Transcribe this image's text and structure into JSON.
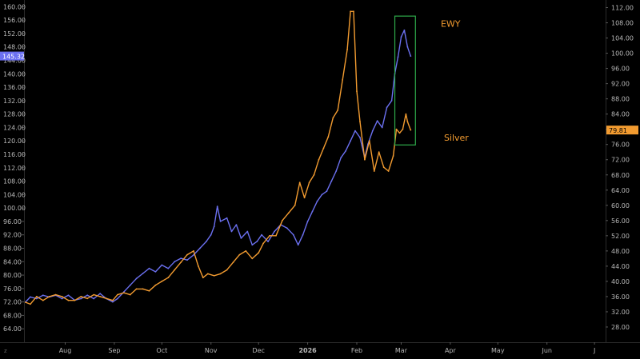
{
  "chart_data": {
    "type": "line",
    "x_axis": {
      "type": "date",
      "range": [
        "2025-07-06",
        "2026-07-08"
      ],
      "ticks": [
        {
          "date": "2025-08-01",
          "label": "Aug"
        },
        {
          "date": "2025-09-01",
          "label": "Sep"
        },
        {
          "date": "2025-10-01",
          "label": "Oct"
        },
        {
          "date": "2025-11-01",
          "label": "Nov"
        },
        {
          "date": "2025-12-01",
          "label": "Dec"
        },
        {
          "date": "2026-01-01",
          "label": "2026",
          "bold": true
        },
        {
          "date": "2026-02-01",
          "label": "Feb"
        },
        {
          "date": "2026-03-01",
          "label": "Mar"
        },
        {
          "date": "2026-04-01",
          "label": "Apr"
        },
        {
          "date": "2026-05-01",
          "label": "May"
        },
        {
          "date": "2026-06-01",
          "label": "Jun"
        },
        {
          "date": "2026-07-01",
          "label": "J"
        }
      ]
    },
    "left_axis": {
      "range": [
        60,
        162
      ],
      "ticks": [
        64,
        68,
        72,
        76,
        80,
        84,
        88,
        92,
        96,
        100,
        104,
        108,
        112,
        116,
        120,
        124,
        128,
        132,
        136,
        140,
        144,
        148,
        152,
        156,
        160
      ],
      "labels": [
        "64.00",
        "68.00",
        "72.00",
        "76.00",
        "80.00",
        "84.00",
        "88.00",
        "92.00",
        "96.00",
        "100.00",
        "104.00",
        "108.00",
        "112.00",
        "116.00",
        "120.00",
        "124.00",
        "128.00",
        "132.00",
        "136.00",
        "140.00",
        "144.00",
        "148.00",
        "152.00",
        "156.00",
        "160.00"
      ]
    },
    "right_axis": {
      "range": [
        24,
        114
      ],
      "ticks": [
        28,
        32,
        36,
        40,
        44,
        48,
        52,
        56,
        60,
        64,
        68,
        72,
        76,
        80,
        84,
        88,
        92,
        96,
        100,
        104,
        108,
        112
      ],
      "labels": [
        "28.00",
        "32.00",
        "36.00",
        "40.00",
        "44.00",
        "48.00",
        "52.00",
        "56.00",
        "60.00",
        "64.00",
        "68.00",
        "72.00",
        "76.00",
        "80.00",
        "84.00",
        "88.00",
        "92.00",
        "96.00",
        "100.00",
        "104.00",
        "108.00",
        "112.00"
      ]
    },
    "grid": false,
    "series": [
      {
        "name": "EWY",
        "axis": "left",
        "color": "#6b70f0",
        "last_value": "145.32",
        "points": [
          [
            "2025-07-07",
            72
          ],
          [
            "2025-07-10",
            73.5
          ],
          [
            "2025-07-14",
            73
          ],
          [
            "2025-07-18",
            74
          ],
          [
            "2025-07-22",
            73.5
          ],
          [
            "2025-07-26",
            74
          ],
          [
            "2025-07-30",
            73
          ],
          [
            "2025-08-03",
            74
          ],
          [
            "2025-08-07",
            72.5
          ],
          [
            "2025-08-11",
            73
          ],
          [
            "2025-08-15",
            74
          ],
          [
            "2025-08-19",
            73
          ],
          [
            "2025-08-23",
            74.5
          ],
          [
            "2025-08-27",
            73
          ],
          [
            "2025-08-31",
            72
          ],
          [
            "2025-09-03",
            73
          ],
          [
            "2025-09-07",
            75
          ],
          [
            "2025-09-11",
            77
          ],
          [
            "2025-09-15",
            79
          ],
          [
            "2025-09-19",
            80.5
          ],
          [
            "2025-09-23",
            82
          ],
          [
            "2025-09-27",
            81
          ],
          [
            "2025-10-01",
            83
          ],
          [
            "2025-10-05",
            82
          ],
          [
            "2025-10-09",
            84
          ],
          [
            "2025-10-13",
            85
          ],
          [
            "2025-10-17",
            84.5
          ],
          [
            "2025-10-21",
            86
          ],
          [
            "2025-10-25",
            88
          ],
          [
            "2025-10-29",
            90
          ],
          [
            "2025-11-01",
            92
          ],
          [
            "2025-11-03",
            94.5
          ],
          [
            "2025-11-05",
            100.5
          ],
          [
            "2025-11-07",
            96
          ],
          [
            "2025-11-11",
            97
          ],
          [
            "2025-11-14",
            93
          ],
          [
            "2025-11-17",
            95
          ],
          [
            "2025-11-20",
            91
          ],
          [
            "2025-11-24",
            93
          ],
          [
            "2025-11-27",
            89
          ],
          [
            "2025-11-30",
            90
          ],
          [
            "2025-12-03",
            92
          ],
          [
            "2025-12-07",
            90
          ],
          [
            "2025-12-11",
            93
          ],
          [
            "2025-12-15",
            95
          ],
          [
            "2025-12-19",
            94
          ],
          [
            "2025-12-23",
            92
          ],
          [
            "2025-12-26",
            89
          ],
          [
            "2025-12-29",
            92
          ],
          [
            "2026-01-01",
            96
          ],
          [
            "2026-01-04",
            99
          ],
          [
            "2026-01-07",
            102
          ],
          [
            "2026-01-10",
            104
          ],
          [
            "2026-01-13",
            105
          ],
          [
            "2026-01-16",
            108
          ],
          [
            "2026-01-19",
            111
          ],
          [
            "2026-01-22",
            115
          ],
          [
            "2026-01-25",
            117
          ],
          [
            "2026-01-28",
            120
          ],
          [
            "2026-01-31",
            123
          ],
          [
            "2026-02-03",
            121
          ],
          [
            "2026-02-06",
            115
          ],
          [
            "2026-02-08",
            119
          ],
          [
            "2026-02-11",
            123
          ],
          [
            "2026-02-14",
            126
          ],
          [
            "2026-02-17",
            124
          ],
          [
            "2026-02-20",
            130
          ],
          [
            "2026-02-23",
            132
          ],
          [
            "2026-02-25",
            140
          ],
          [
            "2026-02-27",
            145
          ],
          [
            "2026-03-01",
            151
          ],
          [
            "2026-03-03",
            153
          ],
          [
            "2026-03-05",
            148
          ],
          [
            "2026-03-07",
            145.3
          ]
        ]
      },
      {
        "name": "Silver",
        "axis": "right",
        "color": "#f29b30",
        "last_value": "79.81",
        "points": [
          [
            "2025-07-07",
            34.5
          ],
          [
            "2025-07-10",
            34
          ],
          [
            "2025-07-14",
            36
          ],
          [
            "2025-07-18",
            35
          ],
          [
            "2025-07-22",
            36
          ],
          [
            "2025-07-26",
            36.5
          ],
          [
            "2025-07-30",
            36
          ],
          [
            "2025-08-03",
            35
          ],
          [
            "2025-08-07",
            35
          ],
          [
            "2025-08-11",
            36
          ],
          [
            "2025-08-15",
            35.5
          ],
          [
            "2025-08-19",
            36.5
          ],
          [
            "2025-08-23",
            36
          ],
          [
            "2025-08-27",
            35.5
          ],
          [
            "2025-08-31",
            35
          ],
          [
            "2025-09-03",
            36.5
          ],
          [
            "2025-09-07",
            37
          ],
          [
            "2025-09-11",
            36.5
          ],
          [
            "2025-09-15",
            38
          ],
          [
            "2025-09-19",
            38
          ],
          [
            "2025-09-23",
            37.5
          ],
          [
            "2025-09-27",
            39
          ],
          [
            "2025-10-01",
            40
          ],
          [
            "2025-10-05",
            41
          ],
          [
            "2025-10-09",
            43
          ],
          [
            "2025-10-13",
            45
          ],
          [
            "2025-10-17",
            47
          ],
          [
            "2025-10-21",
            48
          ],
          [
            "2025-10-24",
            44
          ],
          [
            "2025-10-27",
            41
          ],
          [
            "2025-10-30",
            42
          ],
          [
            "2025-11-03",
            41.5
          ],
          [
            "2025-11-07",
            42
          ],
          [
            "2025-11-11",
            43
          ],
          [
            "2025-11-15",
            45
          ],
          [
            "2025-11-19",
            47
          ],
          [
            "2025-11-23",
            48
          ],
          [
            "2025-11-27",
            46
          ],
          [
            "2025-12-01",
            47.5
          ],
          [
            "2025-12-04",
            50
          ],
          [
            "2025-12-08",
            52
          ],
          [
            "2025-12-12",
            52
          ],
          [
            "2025-12-16",
            56
          ],
          [
            "2025-12-20",
            58
          ],
          [
            "2025-12-24",
            60
          ],
          [
            "2025-12-27",
            66
          ],
          [
            "2025-12-30",
            62
          ],
          [
            "2026-01-02",
            66
          ],
          [
            "2026-01-05",
            68
          ],
          [
            "2026-01-08",
            72
          ],
          [
            "2026-01-11",
            75
          ],
          [
            "2026-01-14",
            78
          ],
          [
            "2026-01-17",
            83
          ],
          [
            "2026-01-20",
            85
          ],
          [
            "2026-01-23",
            93
          ],
          [
            "2026-01-26",
            101
          ],
          [
            "2026-01-28",
            111
          ],
          [
            "2026-01-30",
            111
          ],
          [
            "2026-02-01",
            90
          ],
          [
            "2026-02-03",
            82
          ],
          [
            "2026-02-06",
            72
          ],
          [
            "2026-02-09",
            77
          ],
          [
            "2026-02-12",
            69
          ],
          [
            "2026-02-15",
            74
          ],
          [
            "2026-02-18",
            70
          ],
          [
            "2026-02-21",
            69
          ],
          [
            "2026-02-24",
            73
          ],
          [
            "2026-02-26",
            80
          ],
          [
            "2026-02-28",
            79
          ],
          [
            "2026-03-02",
            80
          ],
          [
            "2026-03-04",
            84
          ],
          [
            "2026-03-05",
            82
          ],
          [
            "2026-03-07",
            79.8
          ]
        ]
      }
    ],
    "annotations": [
      {
        "text": "EWY",
        "color": "#f29b30",
        "date": "2026-03-26",
        "left_value": 154.0
      },
      {
        "text": "Silver",
        "color": "#f29b30",
        "date": "2026-03-28",
        "left_value": 120.0
      },
      {
        "type": "rectangle",
        "color": "#2eaa4a",
        "date_start": "2026-02-25",
        "date_end": "2026-03-10",
        "left_value_top": 157.2,
        "left_value_bottom": 118.8
      }
    ],
    "axis_corner_label": "z"
  }
}
